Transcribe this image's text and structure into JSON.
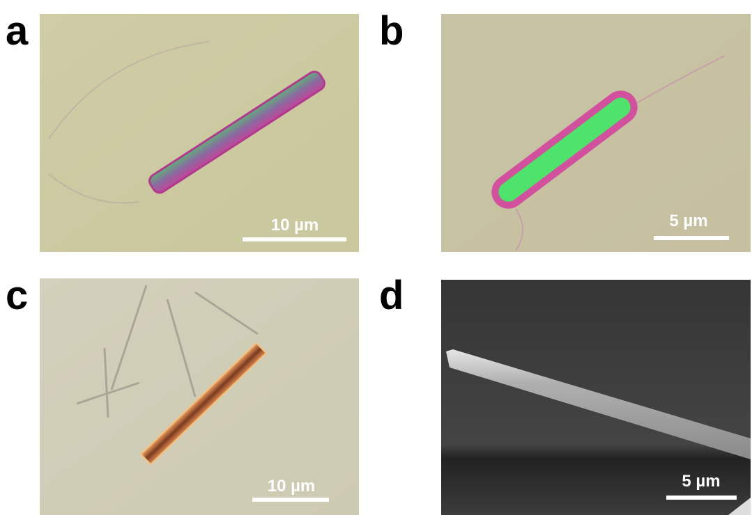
{
  "panels": [
    {
      "label": "a",
      "scale_bar": "10 µm"
    },
    {
      "label": "b",
      "scale_bar": "5 µm"
    },
    {
      "label": "c",
      "scale_bar": "10 µm"
    },
    {
      "label": "d",
      "scale_bar": "5 µm"
    }
  ]
}
